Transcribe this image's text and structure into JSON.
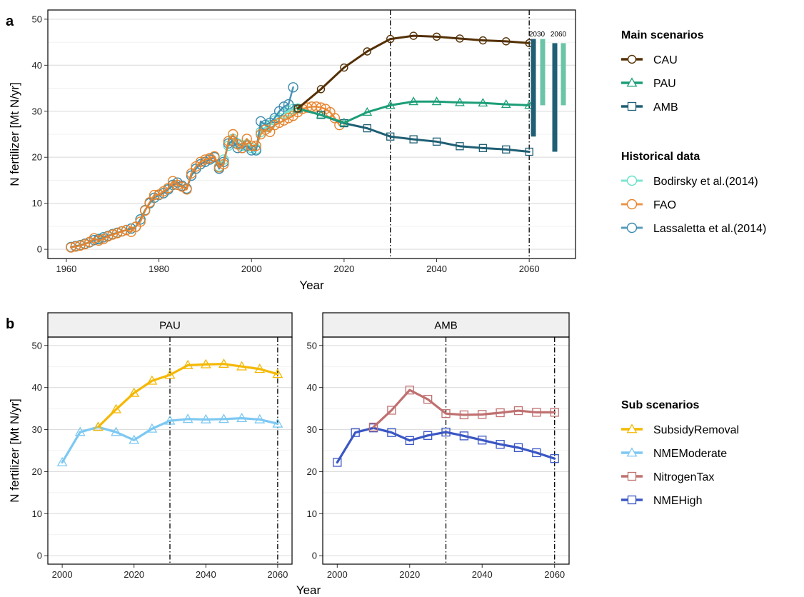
{
  "panel_letters": {
    "a": "a",
    "b": "b"
  },
  "chart_data": [
    {
      "type": "line",
      "panel": "a",
      "xlabel": "Year",
      "ylabel": "N fertilizer [Mt N/yr]",
      "xlim": [
        1956,
        2070
      ],
      "ylim": [
        -2,
        52
      ],
      "xticks": [
        1960,
        1980,
        2000,
        2020,
        2040,
        2060
      ],
      "yticks": [
        0,
        10,
        20,
        30,
        40,
        50
      ],
      "grid": true,
      "vlines": [
        2030,
        2060
      ],
      "legend_groups": [
        {
          "title": "Main scenarios",
          "entries": [
            "CAU",
            "PAU",
            "AMB"
          ]
        },
        {
          "title": "Historical data",
          "entries": [
            "Bodirsky et al.(2014)",
            "FAO",
            "Lassaletta et al.(2014)"
          ]
        }
      ],
      "series": [
        {
          "name": "CAU",
          "color": "#543005",
          "marker": "circle",
          "x": [
            2010,
            2015,
            2020,
            2025,
            2030,
            2035,
            2040,
            2045,
            2050,
            2055,
            2060
          ],
          "y": [
            30.6,
            34.8,
            39.5,
            43.0,
            45.7,
            46.4,
            46.2,
            45.8,
            45.4,
            45.2,
            44.8
          ]
        },
        {
          "name": "PAU",
          "color": "#1b9e77",
          "marker": "triangle",
          "x": [
            2010,
            2015,
            2020,
            2025,
            2030,
            2035,
            2040,
            2045,
            2050,
            2055,
            2060
          ],
          "y": [
            30.6,
            29.2,
            27.5,
            29.8,
            31.3,
            32.1,
            32.1,
            31.9,
            31.8,
            31.5,
            31.3
          ]
        },
        {
          "name": "AMB",
          "color": "#1f5f74",
          "marker": "square",
          "x": [
            2010,
            2015,
            2020,
            2025,
            2030,
            2035,
            2040,
            2045,
            2050,
            2055,
            2060
          ],
          "y": [
            30.6,
            29.2,
            27.4,
            26.3,
            24.5,
            23.9,
            23.4,
            22.4,
            22.0,
            21.7,
            21.2
          ]
        },
        {
          "name": "Bodirsky et al.(2014)",
          "color": "#66e0c8",
          "marker": "circle",
          "x": [
            1961,
            1962,
            1963,
            1964,
            1965,
            1966,
            1967,
            1968,
            1969,
            1970,
            1971,
            1972,
            1973,
            1974,
            1975,
            1976,
            1977,
            1978,
            1979,
            1980,
            1981,
            1982,
            1983,
            1984,
            1985,
            1986,
            1987,
            1988,
            1989,
            1990,
            1991,
            1992,
            1993,
            1994,
            1995,
            1996,
            1997,
            1998,
            1999,
            2000,
            2001,
            2002,
            2003,
            2004,
            2005,
            2006,
            2007,
            2008,
            2009,
            2010
          ],
          "y": [
            0.5,
            0.7,
            0.9,
            1.2,
            1.5,
            2.0,
            2.3,
            2.6,
            2.9,
            3.3,
            3.6,
            3.9,
            4.2,
            4.5,
            4.9,
            6.5,
            8.5,
            10.0,
            11.2,
            11.8,
            12.2,
            13.0,
            14.0,
            14.5,
            13.8,
            13.2,
            16.0,
            17.5,
            18.5,
            19.0,
            19.5,
            20.0,
            18.0,
            19.5,
            22.5,
            24.0,
            23.0,
            22.5,
            22.8,
            22.0,
            21.8,
            25.5,
            26.5,
            27.0,
            28.0,
            28.5,
            29.5,
            30.0,
            30.5,
            30.6
          ]
        },
        {
          "name": "FAO",
          "color": "#e8822a",
          "marker": "circle",
          "x": [
            1961,
            1962,
            1963,
            1964,
            1965,
            1966,
            1967,
            1968,
            1969,
            1970,
            1971,
            1972,
            1973,
            1974,
            1975,
            1976,
            1977,
            1978,
            1979,
            1980,
            1981,
            1982,
            1983,
            1984,
            1985,
            1986,
            1987,
            1988,
            1989,
            1990,
            1991,
            1992,
            1993,
            1994,
            1995,
            1996,
            1997,
            1998,
            1999,
            2000,
            2001,
            2002,
            2003,
            2004,
            2005,
            2006,
            2007,
            2008,
            2009,
            2010,
            2011,
            2012,
            2013,
            2014,
            2015,
            2016,
            2017,
            2018,
            2019
          ],
          "y": [
            0.4,
            0.6,
            0.8,
            1.1,
            1.6,
            2.4,
            1.9,
            2.2,
            2.8,
            3.2,
            3.5,
            3.9,
            4.2,
            3.8,
            4.9,
            6.0,
            8.4,
            10.2,
            11.8,
            11.9,
            12.6,
            13.3,
            14.8,
            14.0,
            13.6,
            13.0,
            16.5,
            18.0,
            19.0,
            19.5,
            19.8,
            20.2,
            17.8,
            18.5,
            23.5,
            25.0,
            22.8,
            22.0,
            24.0,
            22.5,
            22.5,
            25.0,
            26.0,
            25.5,
            27.0,
            27.5,
            28.0,
            28.5,
            29.0,
            29.8,
            30.5,
            30.8,
            31.0,
            31.0,
            30.8,
            30.5,
            29.8,
            28.5,
            27.0
          ]
        },
        {
          "name": "Lassaletta et al.(2014)",
          "color": "#3a8ab0",
          "marker": "circle",
          "x": [
            1961,
            1962,
            1963,
            1964,
            1965,
            1966,
            1967,
            1968,
            1969,
            1970,
            1971,
            1972,
            1973,
            1974,
            1975,
            1976,
            1977,
            1978,
            1979,
            1980,
            1981,
            1982,
            1983,
            1984,
            1985,
            1986,
            1987,
            1988,
            1989,
            1990,
            1991,
            1992,
            1993,
            1994,
            1995,
            1996,
            1997,
            1998,
            1999,
            2000,
            2001,
            2002,
            2003,
            2004,
            2005,
            2006,
            2007,
            2008,
            2009
          ],
          "y": [
            0.5,
            0.7,
            0.9,
            1.2,
            1.5,
            2.0,
            2.2,
            2.6,
            2.9,
            3.3,
            3.6,
            3.9,
            4.2,
            4.5,
            4.9,
            6.5,
            8.5,
            10.0,
            11.2,
            11.8,
            12.2,
            13.0,
            14.0,
            14.5,
            13.8,
            13.2,
            16.0,
            17.5,
            18.5,
            19.0,
            19.5,
            20.0,
            17.5,
            19.0,
            23.0,
            23.5,
            22.0,
            22.0,
            22.5,
            21.5,
            21.5,
            27.8,
            27.0,
            27.5,
            28.5,
            30.0,
            31.0,
            31.5,
            35.2
          ]
        }
      ],
      "ranges": [
        {
          "label": "2030",
          "bars": [
            {
              "color": "#1f5f74",
              "low": 24.5,
              "high": 45.7
            },
            {
              "color": "#6cc4a8",
              "low": 31.3,
              "high": 45.7
            }
          ]
        },
        {
          "label": "2060",
          "bars": [
            {
              "color": "#1f5f74",
              "low": 21.2,
              "high": 44.8
            },
            {
              "color": "#6cc4a8",
              "low": 31.3,
              "high": 44.8
            }
          ]
        }
      ]
    },
    {
      "type": "line",
      "panel": "b",
      "xlabel": "Year",
      "ylabel": "N fertilizer [Mt N/yr]",
      "xlim": [
        1996,
        2064
      ],
      "ylim": [
        -2,
        52
      ],
      "xticks": [
        2000,
        2020,
        2040,
        2060
      ],
      "yticks": [
        0,
        10,
        20,
        30,
        40,
        50
      ],
      "grid": true,
      "vlines": [
        2030,
        2060
      ],
      "legend_groups": [
        {
          "title": "Sub scenarios",
          "entries": [
            "SubsidyRemoval",
            "NMEModerate",
            "NitrogenTax",
            "NMEHigh"
          ]
        }
      ],
      "facets": [
        {
          "label": "PAU",
          "series": [
            {
              "name": "SubsidyRemoval",
              "color": "#f5b800",
              "marker": "triangle",
              "x": [
                2010,
                2015,
                2020,
                2025,
                2030,
                2035,
                2040,
                2045,
                2050,
                2055,
                2060
              ],
              "y": [
                30.6,
                34.8,
                38.7,
                41.6,
                43.0,
                45.3,
                45.5,
                45.6,
                45.0,
                44.4,
                43.2
              ]
            },
            {
              "name": "NMEModerate",
              "color": "#7cc8f2",
              "marker": "triangle",
              "x": [
                2000,
                2005,
                2010,
                2015,
                2020,
                2025,
                2030,
                2035,
                2040,
                2045,
                2050,
                2055,
                2060
              ],
              "y": [
                22.2,
                29.4,
                30.6,
                29.4,
                27.5,
                30.2,
                32.1,
                32.5,
                32.4,
                32.5,
                32.7,
                32.4,
                31.4
              ]
            }
          ]
        },
        {
          "label": "AMB",
          "series": [
            {
              "name": "NitrogenTax",
              "color": "#c07070",
              "marker": "square",
              "x": [
                2010,
                2015,
                2020,
                2025,
                2030,
                2035,
                2040,
                2045,
                2050,
                2055,
                2060
              ],
              "y": [
                30.6,
                34.6,
                39.4,
                37.2,
                33.8,
                33.5,
                33.6,
                34.0,
                34.5,
                34.1,
                34.1
              ]
            },
            {
              "name": "NMEHigh",
              "color": "#3a56c4",
              "marker": "square",
              "x": [
                2000,
                2005,
                2010,
                2015,
                2020,
                2025,
                2030,
                2035,
                2040,
                2045,
                2050,
                2055,
                2060
              ],
              "y": [
                22.2,
                29.3,
                30.4,
                29.3,
                27.4,
                28.6,
                29.4,
                28.5,
                27.5,
                26.5,
                25.7,
                24.5,
                23.1
              ]
            }
          ]
        }
      ]
    }
  ]
}
